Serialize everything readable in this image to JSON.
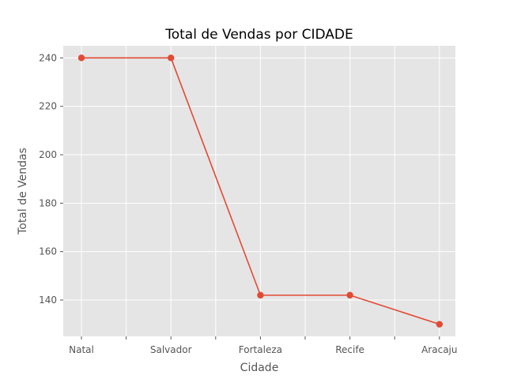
{
  "chart_data": {
    "type": "line",
    "title": "Total de Vendas por CIDADE",
    "xlabel": "Cidade",
    "ylabel": "Total de Vendas",
    "categories": [
      "Natal",
      "Salvador",
      "Fortaleza",
      "Recife",
      "Aracaju"
    ],
    "series": [
      {
        "values": [
          240,
          240,
          142,
          142,
          130
        ],
        "color": "#E24A33"
      }
    ],
    "ylim": [
      125,
      245
    ],
    "yticks": [
      140,
      160,
      180,
      200,
      220,
      240
    ],
    "grid": true,
    "style": "ggplot",
    "plot_background": "#E5E5E5",
    "grid_color": "#FFFFFF"
  }
}
